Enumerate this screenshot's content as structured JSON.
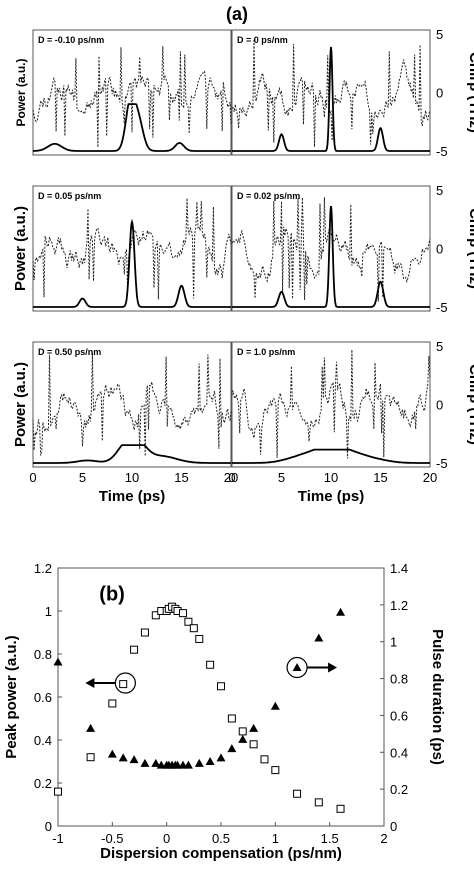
{
  "figure_a_label": "(a)",
  "figure_b_label": "(b)",
  "chart_data": [
    {
      "panel": "a",
      "type": "line",
      "grid": "3x2",
      "xlabel": "Time (ps)",
      "ylabel_left": "Power (a.u.)",
      "ylabel_right": "Chirp (THz)",
      "xlim": [
        0,
        20
      ],
      "xticks": [
        "0",
        "5",
        "10",
        "15",
        "20"
      ],
      "chirp_ylim": [
        -5,
        5
      ],
      "chirp_yticks": [
        "5",
        "0",
        "-5"
      ],
      "series": [
        "Power",
        "Chirp"
      ],
      "subplots": [
        {
          "title": "D = -0.10 ps/nm",
          "power_pulses": [
            {
              "t": 2.2,
              "peak": 0.16,
              "width": 0.7
            },
            {
              "t": 9.8,
              "peak": 1.0,
              "width": 0.45
            },
            {
              "t": 10.6,
              "peak": 0.72,
              "width": 0.5
            },
            {
              "t": 14.8,
              "peak": 0.18,
              "width": 0.45
            }
          ],
          "power_peak_norm": 0.42,
          "chirp_seed": 11
        },
        {
          "title": "D = 0 ps/nm",
          "power_pulses": [
            {
              "t": 5.0,
              "peak": 0.16,
              "width": 0.25
            },
            {
              "t": 10.0,
              "peak": 1.0,
              "width": 0.15
            },
            {
              "t": 15.0,
              "peak": 0.22,
              "width": 0.25
            }
          ],
          "power_peak_norm": 0.98,
          "chirp_seed": 23
        },
        {
          "title": "D = 0.05 ps/nm",
          "power_pulses": [
            {
              "t": 5.0,
              "peak": 0.1,
              "width": 0.3
            },
            {
              "t": 10.0,
              "peak": 1.0,
              "width": 0.25
            },
            {
              "t": 15.0,
              "peak": 0.25,
              "width": 0.3
            }
          ],
          "power_peak_norm": 0.8,
          "chirp_seed": 37
        },
        {
          "title": "D = 0.02 ps/nm",
          "power_pulses": [
            {
              "t": 5.0,
              "peak": 0.15,
              "width": 0.28
            },
            {
              "t": 10.0,
              "peak": 1.0,
              "width": 0.17
            },
            {
              "t": 15.0,
              "peak": 0.25,
              "width": 0.28
            }
          ],
          "power_peak_norm": 0.95,
          "chirp_seed": 51
        },
        {
          "title": "D = 0.50 ps/nm",
          "power_pulses": [
            {
              "t": 5.5,
              "peak": 0.15,
              "width": 1.0
            },
            {
              "t": 9.3,
              "peak": 0.9,
              "width": 0.9
            },
            {
              "t": 10.6,
              "peak": 1.0,
              "width": 0.9
            },
            {
              "t": 13.0,
              "peak": 0.4,
              "width": 1.5
            }
          ],
          "power_peak_norm": 0.16,
          "chirp_seed": 67
        },
        {
          "title": "D = 1.0 ps/nm",
          "power_pulses": [
            {
              "t": 6.5,
              "peak": 0.35,
              "width": 1.4
            },
            {
              "t": 8.5,
              "peak": 0.65,
              "width": 1.3
            },
            {
              "t": 10.3,
              "peak": 1.0,
              "width": 1.2
            },
            {
              "t": 12.3,
              "peak": 0.6,
              "width": 1.3
            },
            {
              "t": 14.5,
              "peak": 0.25,
              "width": 1.4
            }
          ],
          "power_peak_norm": 0.12,
          "chirp_seed": 83
        }
      ]
    },
    {
      "panel": "b",
      "type": "scatter",
      "xlabel": "Dispersion compensation (ps/nm)",
      "ylabel_left": "Peak power (a.u.)",
      "ylabel_right": "Pulse duration (ps)",
      "xlim": [
        -1,
        2
      ],
      "ylim_left": [
        0,
        1.2
      ],
      "ylim_right": [
        0,
        1.4
      ],
      "xticks": [
        "-1",
        "-0.5",
        "0",
        "0.5",
        "1",
        "1.5",
        "2"
      ],
      "yticks_left": [
        "0",
        "0.2",
        "0.4",
        "0.6",
        "0.8",
        "1",
        "1.2"
      ],
      "yticks_right": [
        "0",
        "0.2",
        "0.4",
        "0.6",
        "0.8",
        "1",
        "1.2",
        "1.4"
      ],
      "series": [
        {
          "name": "Peak power",
          "axis": "left",
          "marker": "open-square",
          "x": [
            -1.0,
            -0.7,
            -0.5,
            -0.4,
            -0.3,
            -0.2,
            -0.1,
            -0.05,
            0.0,
            0.02,
            0.05,
            0.08,
            0.1,
            0.15,
            0.2,
            0.25,
            0.3,
            0.4,
            0.5,
            0.6,
            0.7,
            0.8,
            0.9,
            1.0,
            1.2,
            1.4,
            1.6
          ],
          "y": [
            0.16,
            0.32,
            0.57,
            0.66,
            0.82,
            0.9,
            0.98,
            1.0,
            1.0,
            1.01,
            1.02,
            1.01,
            1.0,
            0.99,
            0.95,
            0.92,
            0.87,
            0.75,
            0.65,
            0.5,
            0.44,
            0.38,
            0.31,
            0.26,
            0.15,
            0.11,
            0.08
          ]
        },
        {
          "name": "Pulse duration",
          "axis": "right",
          "marker": "filled-triangle",
          "x": [
            -1.0,
            -0.7,
            -0.5,
            -0.4,
            -0.3,
            -0.2,
            -0.1,
            -0.05,
            0.0,
            0.02,
            0.05,
            0.08,
            0.1,
            0.15,
            0.2,
            0.3,
            0.4,
            0.5,
            0.6,
            0.7,
            0.8,
            1.0,
            1.2,
            1.4,
            1.6
          ],
          "y": [
            0.89,
            0.53,
            0.39,
            0.37,
            0.36,
            0.34,
            0.34,
            0.33,
            0.33,
            0.33,
            0.33,
            0.33,
            0.33,
            0.33,
            0.33,
            0.34,
            0.35,
            0.37,
            0.42,
            0.47,
            0.53,
            0.65,
            0.86,
            1.02,
            1.16
          ]
        }
      ],
      "annotations": [
        "arrow-left-to-peak-power-axis",
        "arrow-right-to-pulse-duration-axis"
      ]
    }
  ]
}
